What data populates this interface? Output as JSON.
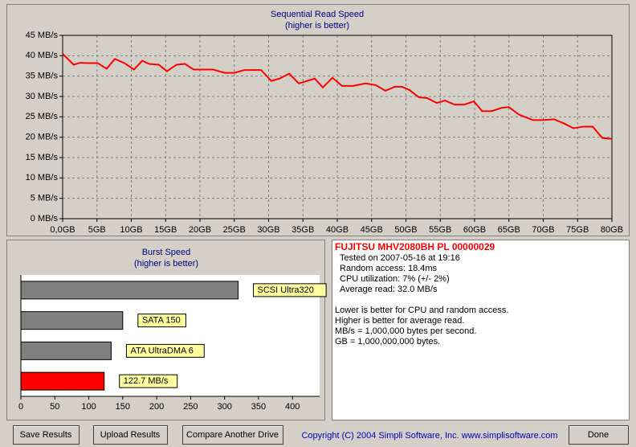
{
  "chart_data": [
    {
      "type": "line",
      "title": "Sequential Read Speed",
      "subtitle": "(higher is better)",
      "color": "#ff0000",
      "grid": true,
      "x": [
        0,
        1.6,
        2.6,
        3.7,
        5.1,
        6.4,
        7.6,
        9.0,
        10.4,
        11.6,
        12.6,
        14.0,
        15.2,
        16.6,
        17.8,
        19.1,
        20.5,
        21.9,
        23.6,
        25.0,
        26.5,
        28.9,
        30.4,
        31.6,
        33.0,
        34.4,
        35.6,
        36.7,
        37.9,
        39.3,
        40.7,
        42.3,
        44.1,
        45.6,
        47.0,
        48.4,
        49.4,
        50.5,
        51.9,
        53.1,
        54.5,
        55.7,
        57.1,
        58.5,
        59.9,
        61.1,
        62.5,
        63.9,
        65.0,
        66.4,
        68.5,
        69.9,
        71.6,
        73.0,
        74.4,
        75.8,
        77.2,
        78.6,
        80
      ],
      "values": [
        40.5,
        37.8,
        38.3,
        38.2,
        38.2,
        36.8,
        39.2,
        38.2,
        36.6,
        38.8,
        38.0,
        37.8,
        36.2,
        37.8,
        38.0,
        36.6,
        36.6,
        36.6,
        35.8,
        35.8,
        36.5,
        36.5,
        33.8,
        34.4,
        35.6,
        33.2,
        33.8,
        34.4,
        32.2,
        34.6,
        32.6,
        32.6,
        33.2,
        32.8,
        31.4,
        32.4,
        32.4,
        31.6,
        29.8,
        29.6,
        28.4,
        29.0,
        28.0,
        28.0,
        28.8,
        26.4,
        26.4,
        27.2,
        27.4,
        25.6,
        24.2,
        24.2,
        24.4,
        23.4,
        22.2,
        22.6,
        22.6,
        19.8,
        19.6
      ],
      "xlim": [
        0,
        80
      ],
      "xticks": [
        {
          "value": 0,
          "label": "0,0GB"
        },
        {
          "value": 5,
          "label": "5GB"
        },
        {
          "value": 10,
          "label": "10GB"
        },
        {
          "value": 15,
          "label": "15GB"
        },
        {
          "value": 20,
          "label": "20GB"
        },
        {
          "value": 25,
          "label": "25GB"
        },
        {
          "value": 30,
          "label": "30GB"
        },
        {
          "value": 35,
          "label": "35GB"
        },
        {
          "value": 40,
          "label": "40GB"
        },
        {
          "value": 45,
          "label": "45GB"
        },
        {
          "value": 50,
          "label": "50GB"
        },
        {
          "value": 55,
          "label": "55GB"
        },
        {
          "value": 60,
          "label": "60GB"
        },
        {
          "value": 65,
          "label": "65GB"
        },
        {
          "value": 70,
          "label": "70GB"
        },
        {
          "value": 75,
          "label": "75GB"
        },
        {
          "value": 80,
          "label": "80GB"
        }
      ],
      "ylim": [
        0,
        45
      ],
      "yticks": [
        {
          "value": 0,
          "label": "0 MB/s"
        },
        {
          "value": 5,
          "label": "5 MB/s"
        },
        {
          "value": 10,
          "label": "10 MB/s"
        },
        {
          "value": 15,
          "label": "15 MB/s"
        },
        {
          "value": 20,
          "label": "20 MB/s"
        },
        {
          "value": 25,
          "label": "25 MB/s"
        },
        {
          "value": 30,
          "label": "30 MB/s"
        },
        {
          "value": 35,
          "label": "35 MB/s"
        },
        {
          "value": 40,
          "label": "40 MB/s"
        },
        {
          "value": 45,
          "label": "45 MB/s"
        }
      ]
    },
    {
      "type": "hbar",
      "title": "Burst Speed",
      "subtitle": "(higher is better)",
      "categories": [
        "SCSI Ultra320",
        "SATA 150",
        "ATA UltraDMA 6",
        null
      ],
      "values": [
        320,
        150,
        133,
        122.7
      ],
      "value_labels": [
        null,
        null,
        null,
        "122.7 MB/s"
      ],
      "colors": [
        "#808080",
        "#808080",
        "#808080",
        "#ff0000"
      ],
      "xlim": [
        0,
        440
      ],
      "xticks": [
        0,
        50,
        100,
        150,
        200,
        250,
        300,
        350,
        400
      ]
    }
  ],
  "info": {
    "title": "FUJITSU MHV2080BH PL 00000029",
    "lines": [
      "Tested on 2007-05-16 at 19:16",
      "Random access: 18.4ms",
      "CPU utilization: 7% (+/- 2%)",
      "Average read: 32.0 MB/s"
    ],
    "notes": [
      "Lower is better for CPU and random access.",
      "Higher is better for average read.",
      "MB/s = 1,000,000 bytes per second.",
      "GB = 1,000,000,000 bytes."
    ]
  },
  "buttons": [
    "Save Results",
    "Upload Results",
    "Compare Another Drive",
    "Done"
  ],
  "copyright": "Copyright (C) 2004 Simpli Software, Inc. www.simplisoftware.com"
}
